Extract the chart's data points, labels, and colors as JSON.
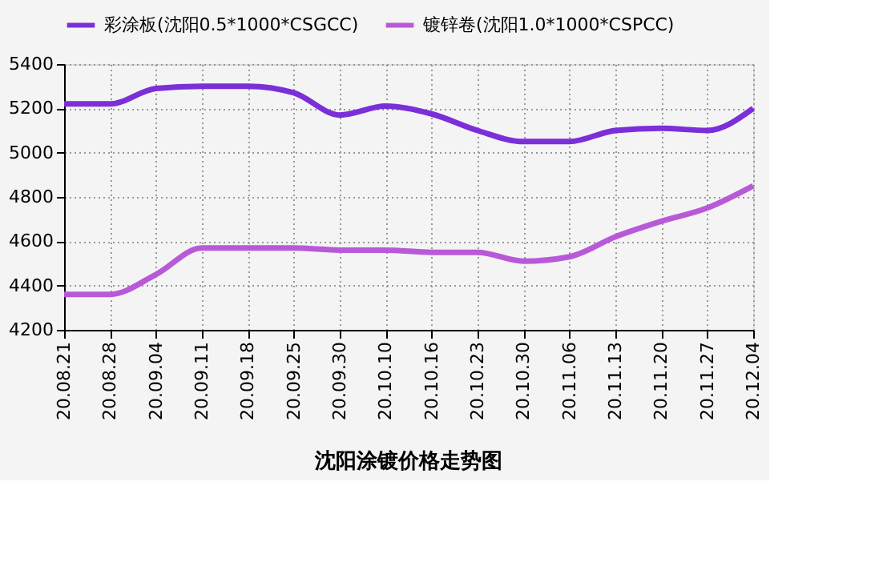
{
  "chart_data": {
    "type": "line",
    "title": "沈阳涂镀价格走势图",
    "categories": [
      "20.08.21",
      "20.08.28",
      "20.09.04",
      "20.09.11",
      "20.09.18",
      "20.09.25",
      "20.09.30",
      "20.10.10",
      "20.10.16",
      "20.10.23",
      "20.10.30",
      "20.11.06",
      "20.11.13",
      "20.11.20",
      "20.11.27",
      "20.12.04"
    ],
    "series": [
      {
        "name": "彩涂板(沈阳0.5*1000*CSGCC)",
        "color": "#7b2fd8",
        "values": [
          5220,
          5220,
          5290,
          5300,
          5300,
          5270,
          5170,
          5210,
          5175,
          5100,
          5050,
          5050,
          5100,
          5110,
          5100,
          5200
        ]
      },
      {
        "name": "镀锌卷(沈阳1.0*1000*CSPCC)",
        "color": "#b85ad8",
        "values": [
          4360,
          4360,
          4450,
          4570,
          4570,
          4570,
          4560,
          4560,
          4550,
          4550,
          4510,
          4530,
          4620,
          4690,
          4750,
          4850
        ]
      }
    ],
    "ylim": [
      4200,
      5400
    ],
    "yticks": [
      4200,
      4400,
      4600,
      4800,
      5000,
      5200,
      5400
    ],
    "grid": true,
    "legend": "top",
    "line_style": "solid",
    "marker": "none"
  }
}
